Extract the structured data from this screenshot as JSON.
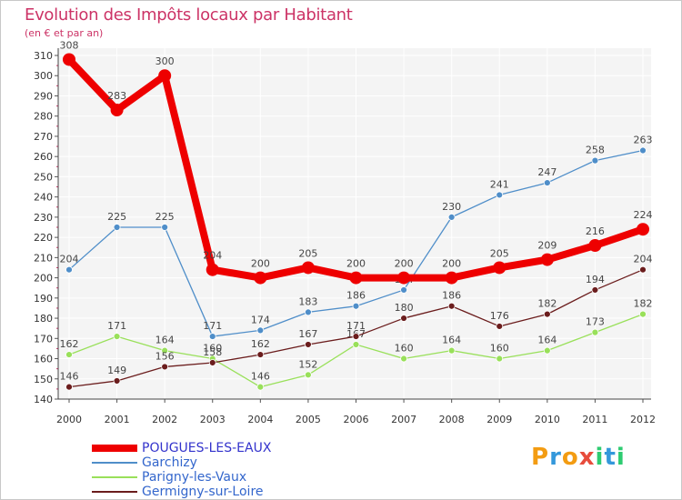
{
  "header": {
    "title": "Evolution des Impôts locaux par Habitant",
    "subtitle": "(en € et par an)"
  },
  "brand": [
    "P",
    "r",
    "o",
    "x",
    "i",
    "t",
    "i"
  ],
  "chart_data": {
    "type": "line",
    "title": "Evolution des Impôts locaux par Habitant",
    "ylabel": "(en € et par an)",
    "xlabel": "",
    "ylim": [
      140,
      310
    ],
    "ytick_step": 10,
    "x": [
      2000,
      2001,
      2002,
      2003,
      2004,
      2005,
      2006,
      2007,
      2008,
      2009,
      2010,
      2011,
      2012
    ],
    "series": [
      {
        "name": "POUGUES-LES-EAUX",
        "color": "#ee0000",
        "text_color": "#3333cc",
        "values": [
          308,
          283,
          300,
          204,
          200,
          205,
          200,
          200,
          200,
          205,
          209,
          216,
          224
        ]
      },
      {
        "name": "Garchizy",
        "color": "#4f8ec9",
        "text_color": "#3366cc",
        "values": [
          204,
          225,
          225,
          171,
          174,
          183,
          186,
          194,
          230,
          241,
          247,
          258,
          263
        ]
      },
      {
        "name": "Parigny-les-Vaux",
        "color": "#99e05a",
        "text_color": "#3366cc",
        "values": [
          162,
          171,
          164,
          160,
          146,
          152,
          167,
          160,
          164,
          160,
          164,
          173,
          182
        ]
      },
      {
        "name": "Germigny-sur-Loire",
        "color": "#6b1d1d",
        "text_color": "#3366cc",
        "values": [
          146,
          149,
          156,
          158,
          162,
          167,
          171,
          180,
          186,
          176,
          182,
          194,
          204
        ]
      }
    ]
  }
}
